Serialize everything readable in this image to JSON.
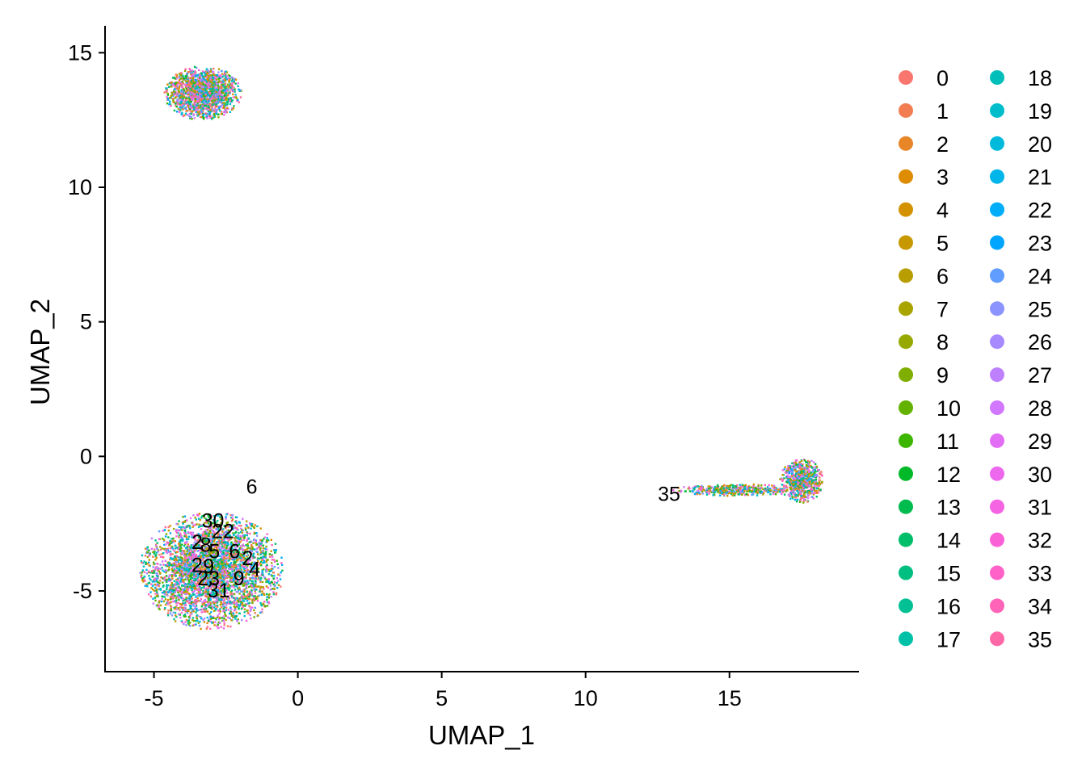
{
  "chart_data": {
    "type": "scatter",
    "title": "",
    "xlabel": "UMAP_1",
    "ylabel": "UMAP_2",
    "xlim": [
      -6.7,
      19.5
    ],
    "ylim": [
      -8,
      16
    ],
    "xticks": [
      -5,
      0,
      5,
      10,
      15
    ],
    "yticks": [
      -5,
      0,
      5,
      10,
      15
    ],
    "grid": false,
    "legend_placement": "right",
    "cluster_ids": [
      "0",
      "1",
      "2",
      "3",
      "4",
      "5",
      "6",
      "7",
      "8",
      "9",
      "10",
      "11",
      "12",
      "13",
      "14",
      "15",
      "16",
      "17",
      "18",
      "19",
      "20",
      "21",
      "22",
      "23",
      "24",
      "25",
      "26",
      "27",
      "28",
      "29",
      "30",
      "31",
      "32",
      "33",
      "34",
      "35"
    ],
    "cluster_colors": [
      "#F8766D",
      "#F17D50",
      "#E88526",
      "#DE8C00",
      "#D39200",
      "#C79800",
      "#B89E00",
      "#A9A400",
      "#97A900",
      "#80AE00",
      "#64B200",
      "#3CB600",
      "#00B928",
      "#00BB4E",
      "#00BE6A",
      "#00BF80",
      "#00C094",
      "#00C0A8",
      "#00BFBA",
      "#00BDCC",
      "#00BADC",
      "#00B5EA",
      "#00ADF8",
      "#00A5FF",
      "#619CFF",
      "#8B93FF",
      "#A78AFF",
      "#BE80FF",
      "#D277FF",
      "#E26EF6",
      "#ED68ED",
      "#F564E3",
      "#FB61D7",
      "#FF61C9",
      "#FF64B8",
      "#FF68A6"
    ],
    "clouds": [
      {
        "cx": -3.3,
        "cy": 13.5,
        "rx": 1.35,
        "ry": 1.0,
        "n": 1600
      },
      {
        "cx": -3.0,
        "cy": -4.25,
        "rx": 2.5,
        "ry": 2.2,
        "n": 3500
      },
      {
        "cx": 17.5,
        "cy": -0.9,
        "rx": 0.75,
        "ry": 0.85,
        "n": 700
      },
      {
        "cx": 15.2,
        "cy": -1.25,
        "rx": 2.2,
        "ry": 0.22,
        "n": 400
      }
    ],
    "cluster_labels": [
      {
        "text": "6",
        "x": -1.6,
        "y": -1.15
      },
      {
        "text": "30",
        "x": -2.95,
        "y": -2.4
      },
      {
        "text": "2",
        "x": -3.5,
        "y": -3.2
      },
      {
        "text": "8",
        "x": -3.2,
        "y": -3.3
      },
      {
        "text": "22",
        "x": -2.6,
        "y": -2.8
      },
      {
        "text": "5",
        "x": -2.9,
        "y": -3.55
      },
      {
        "text": "6",
        "x": -2.2,
        "y": -3.55
      },
      {
        "text": "2",
        "x": -1.75,
        "y": -3.8
      },
      {
        "text": "2",
        "x": -3.5,
        "y": -4.05
      },
      {
        "text": "9",
        "x": -3.1,
        "y": -4.1
      },
      {
        "text": "4",
        "x": -1.5,
        "y": -4.2
      },
      {
        "text": "23",
        "x": -3.1,
        "y": -4.55
      },
      {
        "text": "9",
        "x": -2.05,
        "y": -4.55
      },
      {
        "text": "31",
        "x": -2.75,
        "y": -5.0
      },
      {
        "text": "35",
        "x": 12.9,
        "y": -1.42
      }
    ]
  }
}
